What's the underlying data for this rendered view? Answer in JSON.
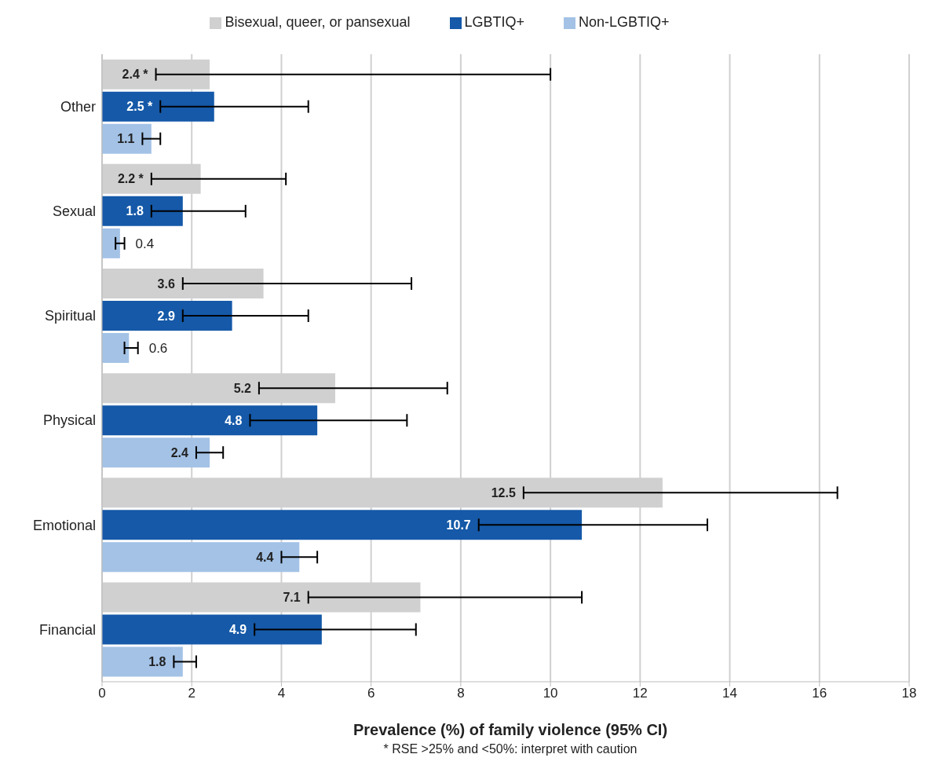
{
  "chart_data": {
    "type": "bar",
    "orientation": "horizontal",
    "xlabel": "Prevalence (%) of family violence (95% CI)",
    "annotations": [
      "* RSE >25% and <50%: interpret with caution"
    ],
    "categories": [
      "Other",
      "Sexual",
      "Spiritual",
      "Physical",
      "Emotional",
      "Financial"
    ],
    "series": [
      {
        "name": "Bisexual, queer, or pansexual",
        "color": "#d0d0d0",
        "values": [
          2.4,
          2.2,
          3.6,
          5.2,
          12.5,
          7.1
        ],
        "value_labels": [
          "2.4 *",
          "2.2 *",
          "3.6",
          "5.2",
          "12.5",
          "7.1"
        ],
        "errors": [
          [
            1.2,
            10.0
          ],
          [
            1.1,
            4.1
          ],
          [
            1.8,
            6.9
          ],
          [
            3.5,
            7.7
          ],
          [
            9.4,
            16.4
          ],
          [
            4.6,
            10.7
          ]
        ]
      },
      {
        "name": "LGBTIQ+",
        "color": "#1559a8",
        "values": [
          2.5,
          1.8,
          2.9,
          4.8,
          10.7,
          4.9
        ],
        "value_labels": [
          "2.5 *",
          "1.8",
          "2.9",
          "4.8",
          "10.7",
          "4.9"
        ],
        "errors": [
          [
            1.3,
            4.6
          ],
          [
            1.1,
            3.2
          ],
          [
            1.8,
            4.6
          ],
          [
            3.3,
            6.8
          ],
          [
            8.4,
            13.5
          ],
          [
            3.4,
            7.0
          ]
        ]
      },
      {
        "name": "Non-LGBTIQ+",
        "color": "#a3c2e6",
        "values": [
          1.1,
          0.4,
          0.6,
          2.4,
          4.4,
          1.8
        ],
        "value_labels": [
          "1.1",
          "0.4",
          "0.6",
          "2.4",
          "4.4",
          "1.8"
        ],
        "errors": [
          [
            0.9,
            1.3
          ],
          [
            0.3,
            0.5
          ],
          [
            0.5,
            0.8
          ],
          [
            2.1,
            2.7
          ],
          [
            4.0,
            4.8
          ],
          [
            1.6,
            2.1
          ]
        ]
      }
    ],
    "xlim": [
      0,
      18
    ],
    "xticks": [
      0,
      2,
      4,
      6,
      8,
      10,
      12,
      14,
      16,
      18
    ],
    "grid": "x",
    "legend": "top"
  }
}
